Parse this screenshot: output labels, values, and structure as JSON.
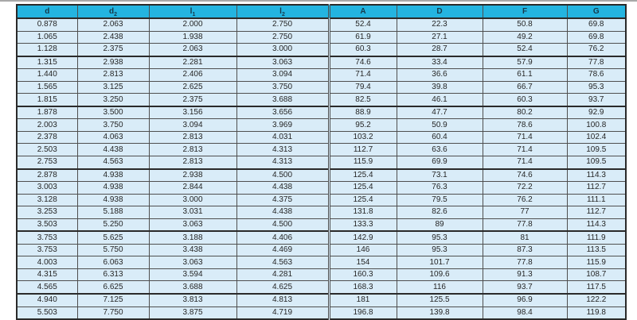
{
  "page": {
    "description_colors": {
      "header_bg": "#24b4e0",
      "header_text": "#17394a",
      "row_bg": "#d9ecf8",
      "grid_line": "#4f4f4f",
      "heavy_line": "#2a2a2a",
      "top_edge_gray": "#a9a9a9"
    }
  },
  "chart_data": {
    "type": "table",
    "title": "",
    "legend_position": "none",
    "columns": [
      {
        "id": "d",
        "base": "d",
        "sub": ""
      },
      {
        "id": "d2",
        "base": "d",
        "sub": "2"
      },
      {
        "id": "l1",
        "base": "l",
        "sub": "1"
      },
      {
        "id": "l2",
        "base": "l",
        "sub": "2"
      },
      {
        "id": "A",
        "base": "A",
        "sub": ""
      },
      {
        "id": "D",
        "base": "D",
        "sub": ""
      },
      {
        "id": "F",
        "base": "F",
        "sub": ""
      },
      {
        "id": "G",
        "base": "G",
        "sub": ""
      }
    ],
    "group_end_rows": [
      3,
      7,
      12,
      17,
      22
    ],
    "rows": [
      [
        "0.878",
        "2.063",
        "2.000",
        "2.750",
        "52.4",
        "22.3",
        "50.8",
        "69.8"
      ],
      [
        "1.065",
        "2.438",
        "1.938",
        "2.750",
        "61.9",
        "27.1",
        "49.2",
        "69.8"
      ],
      [
        "1.128",
        "2.375",
        "2.063",
        "3.000",
        "60.3",
        "28.7",
        "52.4",
        "76.2"
      ],
      [
        "1.315",
        "2.938",
        "2.281",
        "3.063",
        "74.6",
        "33.4",
        "57.9",
        "77.8"
      ],
      [
        "1.440",
        "2.813",
        "2.406",
        "3.094",
        "71.4",
        "36.6",
        "61.1",
        "78.6"
      ],
      [
        "1.565",
        "3.125",
        "2.625",
        "3.750",
        "79.4",
        "39.8",
        "66.7",
        "95.3"
      ],
      [
        "1.815",
        "3.250",
        "2.375",
        "3.688",
        "82.5",
        "46.1",
        "60.3",
        "93.7"
      ],
      [
        "1.878",
        "3.500",
        "3.156",
        "3.656",
        "88.9",
        "47.7",
        "80.2",
        "92.9"
      ],
      [
        "2.003",
        "3.750",
        "3.094",
        "3.969",
        "95.2",
        "50.9",
        "78.6",
        "100.8"
      ],
      [
        "2.378",
        "4.063",
        "2.813",
        "4.031",
        "103.2",
        "60.4",
        "71.4",
        "102.4"
      ],
      [
        "2.503",
        "4.438",
        "2.813",
        "4.313",
        "112.7",
        "63.6",
        "71.4",
        "109.5"
      ],
      [
        "2.753",
        "4.563",
        "2.813",
        "4.313",
        "115.9",
        "69.9",
        "71.4",
        "109.5"
      ],
      [
        "2.878",
        "4.938",
        "2.938",
        "4.500",
        "125.4",
        "73.1",
        "74.6",
        "114.3"
      ],
      [
        "3.003",
        "4.938",
        "2.844",
        "4.438",
        "125.4",
        "76.3",
        "72.2",
        "112.7"
      ],
      [
        "3.128",
        "4.938",
        "3.000",
        "4.375",
        "125.4",
        "79.5",
        "76.2",
        "111.1"
      ],
      [
        "3.253",
        "5.188",
        "3.031",
        "4.438",
        "131.8",
        "82.6",
        "77",
        "112.7"
      ],
      [
        "3.503",
        "5.250",
        "3.063",
        "4.500",
        "133.3",
        "89",
        "77.8",
        "114.3"
      ],
      [
        "3.753",
        "5.625",
        "3.188",
        "4.406",
        "142.9",
        "95.3",
        "81",
        "111.9"
      ],
      [
        "3.753",
        "5.750",
        "3.438",
        "4.469",
        "146",
        "95.3",
        "87.3",
        "113.5"
      ],
      [
        "4.003",
        "6.063",
        "3.063",
        "4.563",
        "154",
        "101.7",
        "77.8",
        "115.9"
      ],
      [
        "4.315",
        "6.313",
        "3.594",
        "4.281",
        "160.3",
        "109.6",
        "91.3",
        "108.7"
      ],
      [
        "4.565",
        "6.625",
        "3.688",
        "4.625",
        "168.3",
        "116",
        "93.7",
        "117.5"
      ],
      [
        "4.940",
        "7.125",
        "3.813",
        "4.813",
        "181",
        "125.5",
        "96.9",
        "122.2"
      ],
      [
        "5.503",
        "7.750",
        "3.875",
        "4.719",
        "196.8",
        "139.8",
        "98.4",
        "119.8"
      ]
    ]
  }
}
